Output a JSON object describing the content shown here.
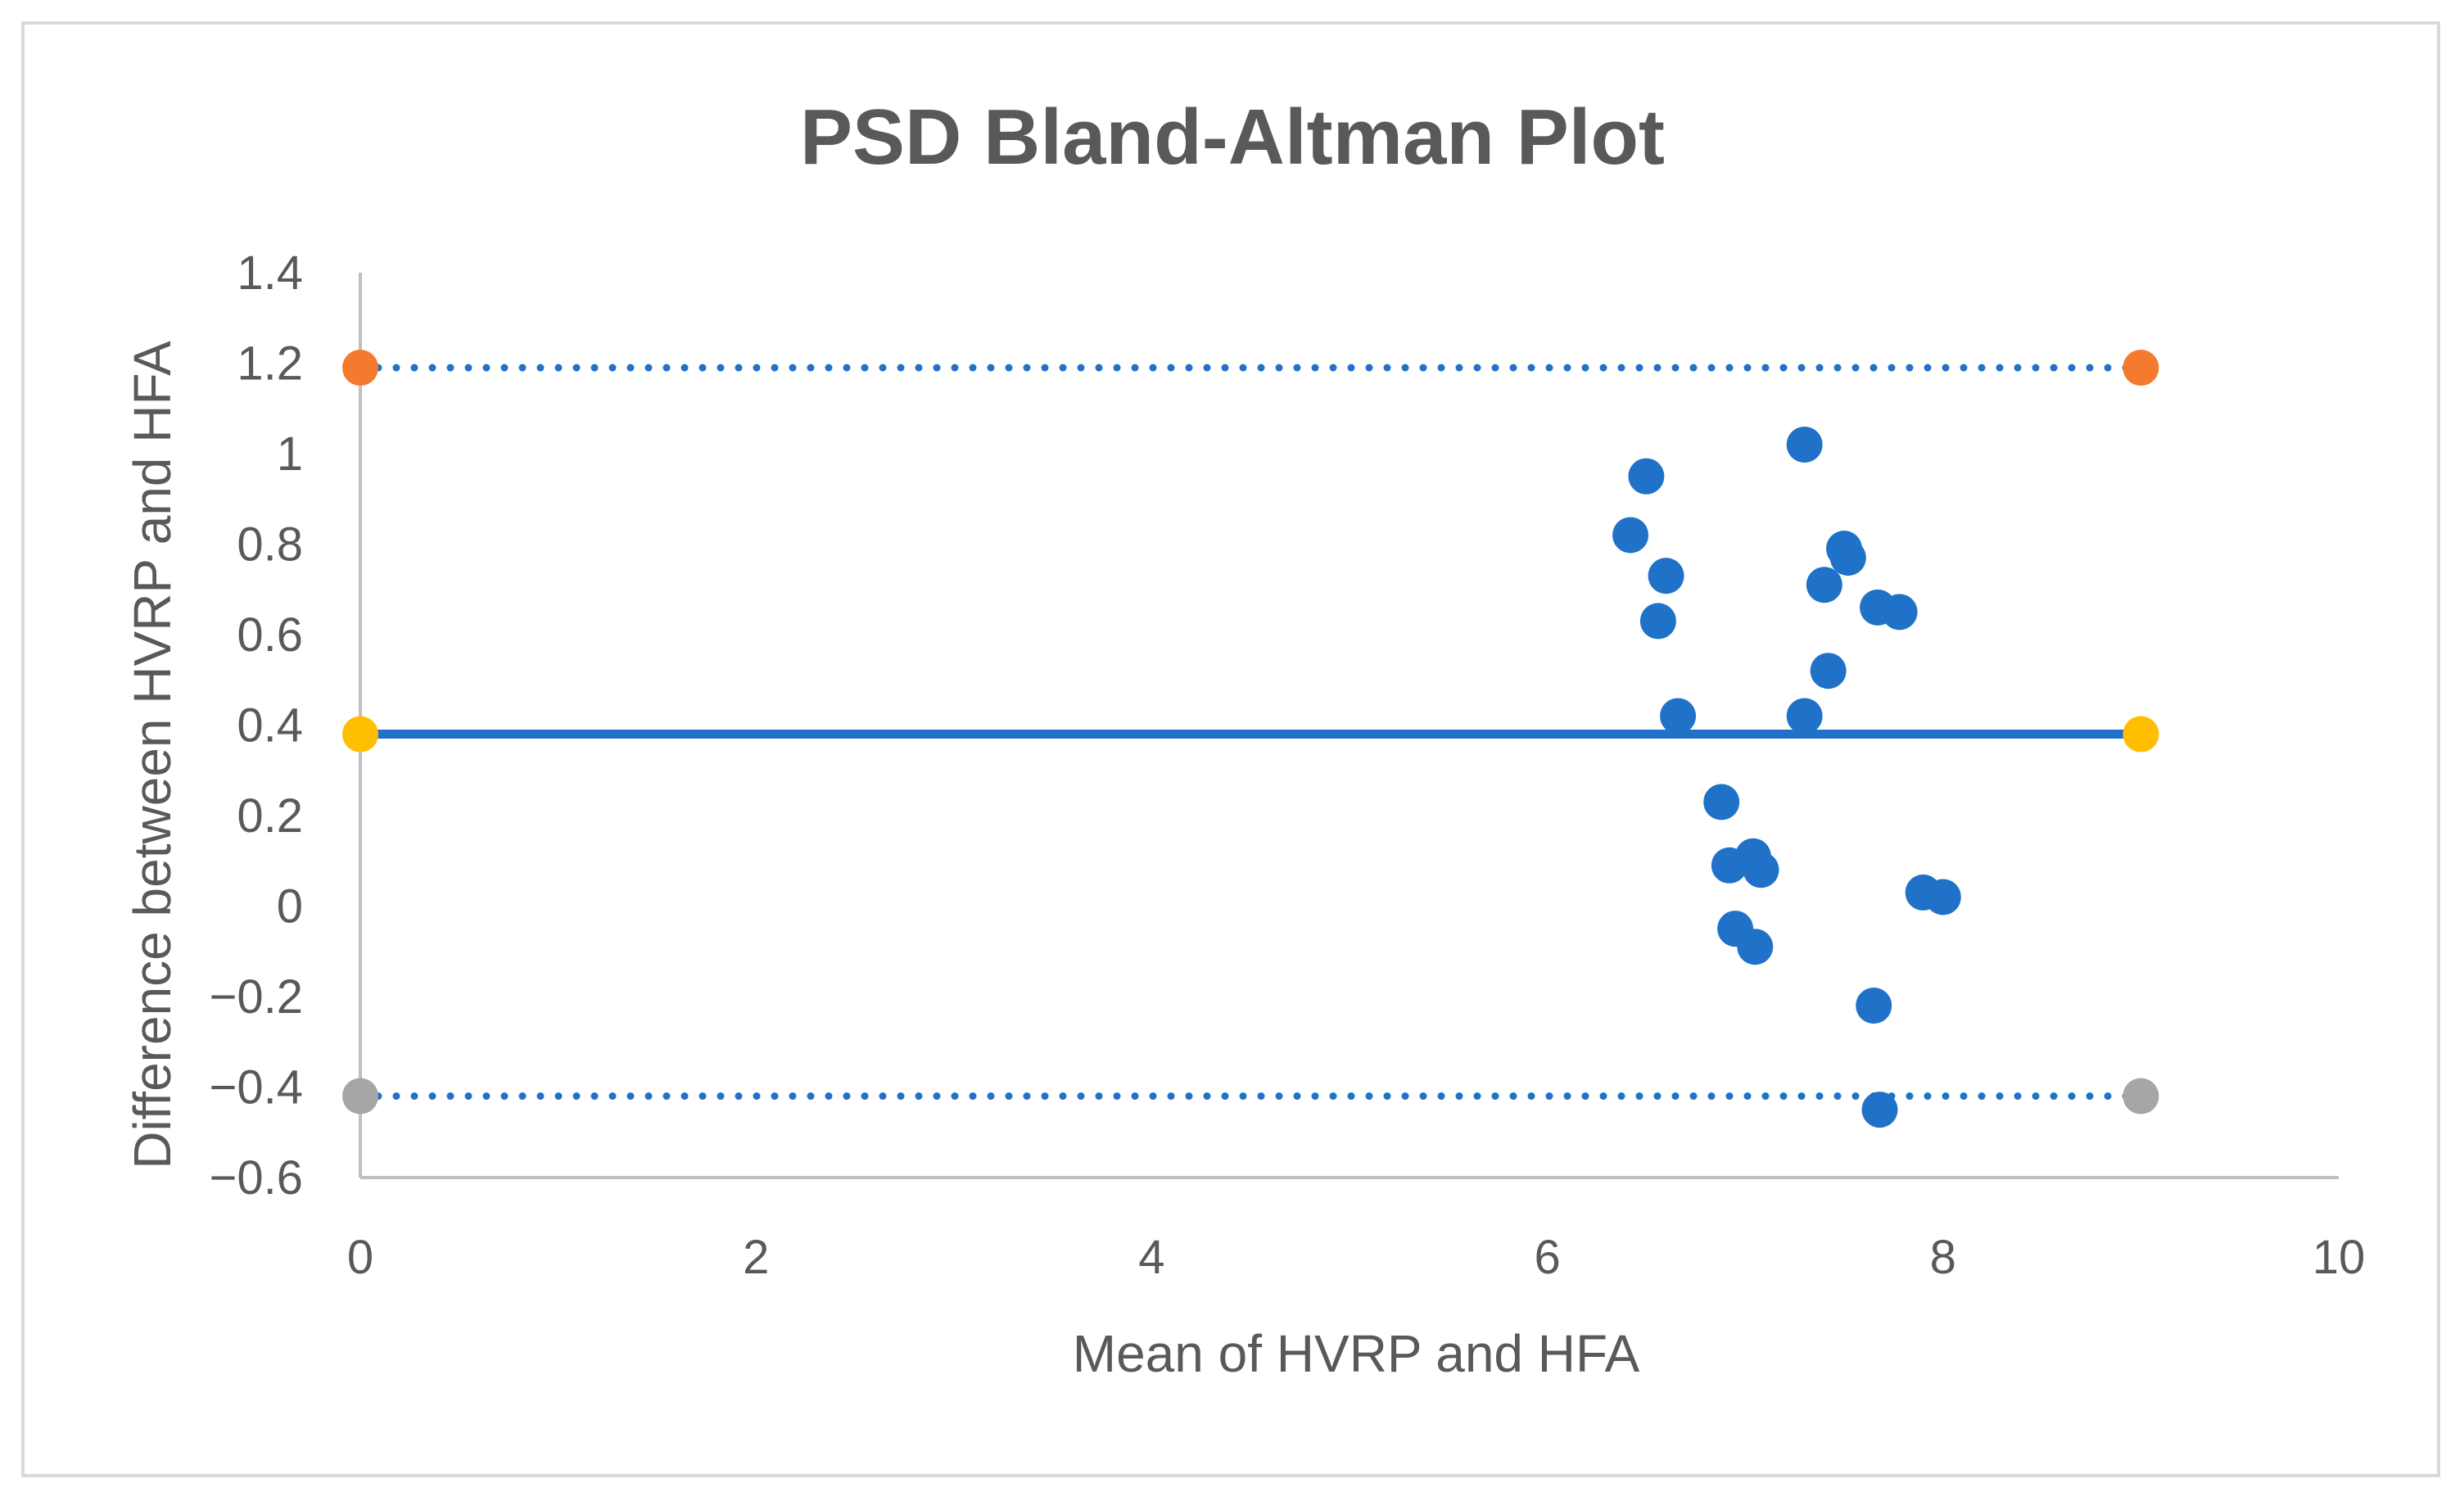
{
  "chart_data": {
    "type": "scatter",
    "title": "PSD Bland-Altman Plot",
    "xlabel": "Mean of HVRP and HFA",
    "ylabel": "Difference between HVRP and HFA",
    "xlim": [
      0,
      10
    ],
    "ylim": [
      -0.6,
      1.4
    ],
    "x_ticks": [
      0,
      2,
      4,
      6,
      8,
      10
    ],
    "x_tick_labels": [
      "0",
      "2",
      "4",
      "6",
      "8",
      "10"
    ],
    "y_ticks": [
      1.4,
      1.2,
      1,
      0.8,
      0.6,
      0.4,
      0.2,
      0,
      -0.2,
      -0.4,
      -0.6
    ],
    "y_tick_labels": [
      "1.4",
      "1.2",
      "1",
      "0.8",
      "0.6",
      "0.4",
      "0.2",
      "0",
      "−0.2",
      "−0.4",
      "−0.6"
    ],
    "grid": false,
    "colors": {
      "points": "#1f72c8",
      "upper_limit": "#f47a30",
      "mean": "#ffbf00",
      "lower_limit": "#a6a6a6",
      "axis": "#bfbfbf",
      "text": "#595959"
    },
    "series": [
      {
        "values": [
          {
            "x": 6.42,
            "y": 0.82
          },
          {
            "x": 6.5,
            "y": 0.95
          },
          {
            "x": 6.56,
            "y": 0.63
          },
          {
            "x": 6.6,
            "y": 0.73
          },
          {
            "x": 6.66,
            "y": 0.42
          },
          {
            "x": 6.88,
            "y": 0.23
          },
          {
            "x": 6.92,
            "y": 0.09
          },
          {
            "x": 6.95,
            "y": -0.05
          },
          {
            "x": 7.04,
            "y": 0.11
          },
          {
            "x": 7.08,
            "y": 0.08
          },
          {
            "x": 7.05,
            "y": -0.09
          },
          {
            "x": 7.3,
            "y": 1.02
          },
          {
            "x": 7.3,
            "y": 0.42
          },
          {
            "x": 7.4,
            "y": 0.71
          },
          {
            "x": 7.42,
            "y": 0.52
          },
          {
            "x": 7.5,
            "y": 0.79
          },
          {
            "x": 7.52,
            "y": 0.77
          },
          {
            "x": 7.65,
            "y": -0.22
          },
          {
            "x": 7.67,
            "y": 0.66
          },
          {
            "x": 7.78,
            "y": 0.65
          },
          {
            "x": 7.68,
            "y": -0.45
          },
          {
            "x": 7.9,
            "y": 0.03
          },
          {
            "x": 8.0,
            "y": 0.02
          }
        ]
      },
      {
        "line_style": "dotted",
        "values": [
          {
            "x": 0,
            "y": 1.19
          },
          {
            "x": 9,
            "y": 1.19
          }
        ]
      },
      {
        "line_style": "solid",
        "values": [
          {
            "x": 0,
            "y": 0.38
          },
          {
            "x": 9,
            "y": 0.38
          }
        ]
      },
      {
        "line_style": "dotted",
        "values": [
          {
            "x": 0,
            "y": -0.42
          },
          {
            "x": 9,
            "y": -0.42
          }
        ]
      }
    ]
  }
}
